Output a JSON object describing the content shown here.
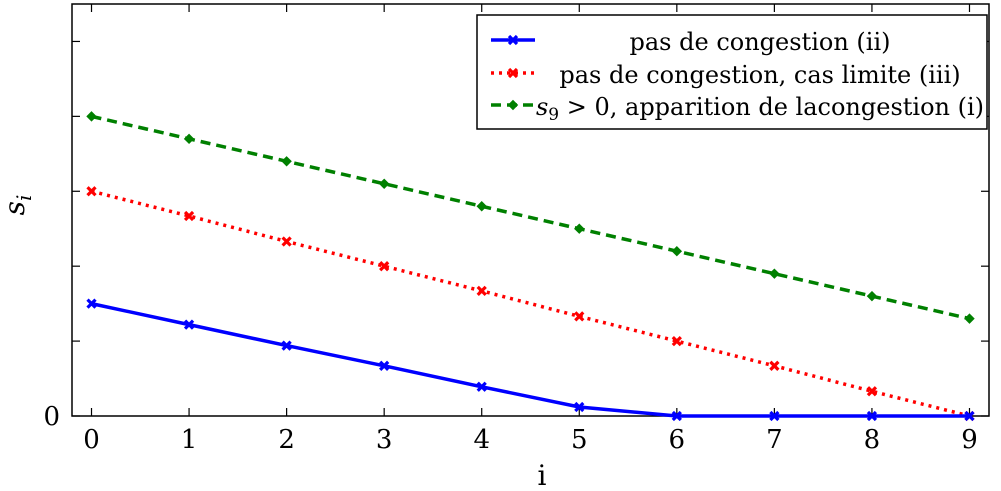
{
  "chart_data": {
    "type": "line",
    "title": "",
    "xlabel": "i",
    "ylabel": "s",
    "ylabel_subscript": "i",
    "x": [
      0,
      1,
      2,
      3,
      4,
      5,
      6,
      7,
      8,
      9
    ],
    "xlim": [
      -0.2,
      9.2
    ],
    "ylim": [
      0,
      5.5
    ],
    "y_tick_values": [
      0,
      1,
      2,
      3,
      4,
      5
    ],
    "y_tick_labels": [
      "0",
      "",
      "",
      "",
      "",
      ""
    ],
    "grid": false,
    "legend_position": "top-right",
    "series": [
      {
        "name": "pas de congestion (ii)",
        "color": "#0000ff",
        "line_style": "solid",
        "marker": "x",
        "values": [
          1.5,
          1.22,
          0.94,
          0.67,
          0.39,
          0.12,
          0,
          0,
          0,
          0
        ]
      },
      {
        "name": "pas de congestion, cas limite (iii)",
        "color": "#ff0000",
        "line_style": "dotted",
        "marker": "x",
        "values": [
          3.0,
          2.67,
          2.33,
          2.0,
          1.67,
          1.33,
          1.0,
          0.67,
          0.33,
          0.0
        ]
      },
      {
        "name_prefix": "s",
        "name_subscript": "9",
        "name_suffix": " > 0, apparition de lacongestion (i)",
        "color": "#008000",
        "line_style": "dashed",
        "marker": "diamond",
        "values": [
          4.0,
          3.7,
          3.4,
          3.1,
          2.8,
          2.5,
          2.2,
          1.9,
          1.6,
          1.3
        ]
      }
    ]
  }
}
